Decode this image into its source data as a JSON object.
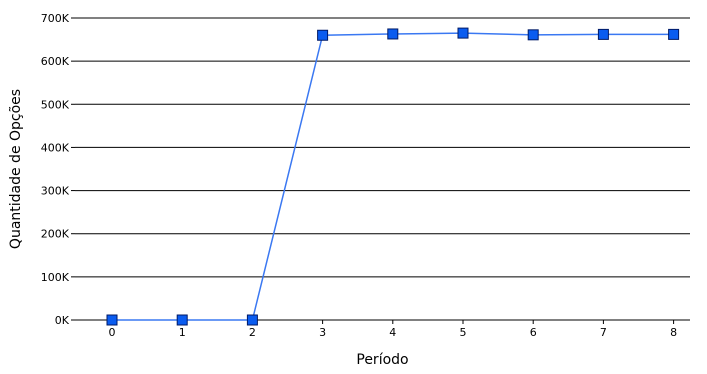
{
  "chart_data": {
    "type": "line",
    "title": "",
    "xlabel": "Período",
    "ylabel": "Quantidade de Opções",
    "x": [
      0,
      1,
      2,
      3,
      4,
      5,
      6,
      7,
      8
    ],
    "x_tick_labels": [
      "0",
      "1",
      "2",
      "3",
      "4",
      "5",
      "6",
      "7",
      "8"
    ],
    "y_ticks": [
      0,
      100000,
      200000,
      300000,
      400000,
      500000,
      600000,
      700000
    ],
    "y_tick_labels": [
      "0K",
      "100K",
      "200K",
      "300K",
      "400K",
      "500K",
      "600K",
      "700K"
    ],
    "ylim": [
      0,
      700000
    ],
    "grid": "horizontal",
    "legend": "none",
    "series": [
      {
        "values": [
          0,
          0,
          0,
          660000,
          663000,
          665000,
          661000,
          662000,
          662000
        ],
        "line_color": "#3a78f2",
        "marker": "square",
        "marker_color": "#0a5cf0"
      }
    ]
  }
}
